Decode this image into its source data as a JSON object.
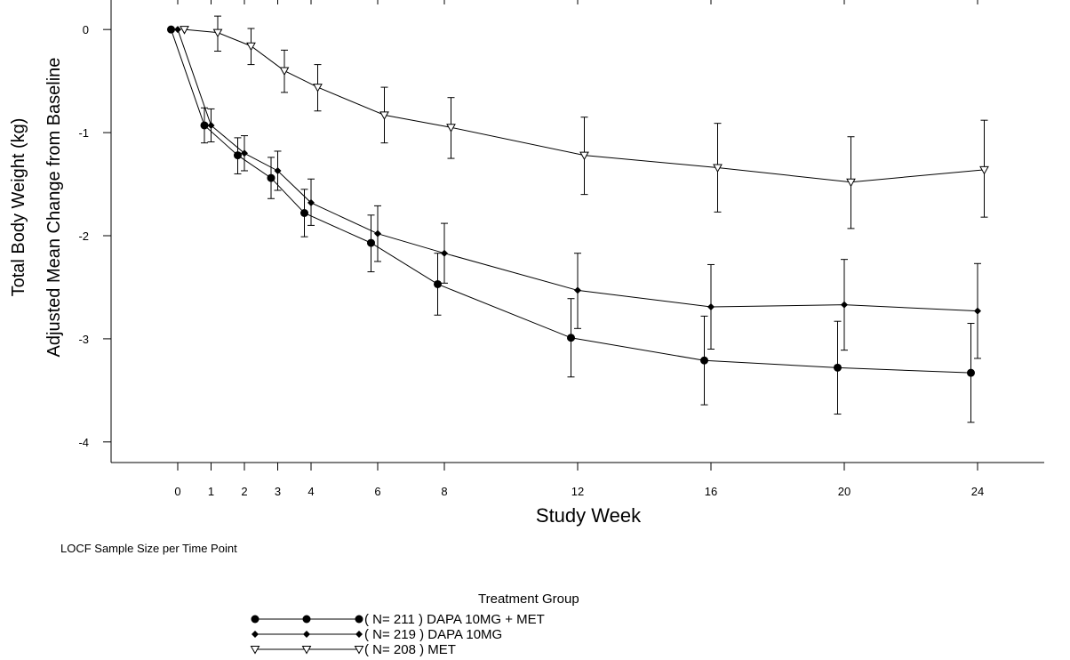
{
  "chart_data": {
    "type": "line",
    "xlabel": "Study Week",
    "ylabel": [
      "Total Body Weight (kg)",
      "Adjusted Mean Change from Baseline"
    ],
    "xticks": [
      0,
      1,
      2,
      3,
      4,
      6,
      8,
      12,
      16,
      20,
      24
    ],
    "yticks": [
      0,
      -1,
      -2,
      -3,
      -4
    ],
    "xlim": [
      -2,
      26
    ],
    "ylim": [
      -4.2,
      0.2
    ],
    "grid": false,
    "legend_placement": "bottom-center",
    "legend_title": "Treatment Group",
    "footnote": "LOCF Sample Size per Time Point",
    "series": [
      {
        "name": "DAPA 10MG + MET",
        "legend_label": "( N= 211 ) DAPA 10MG + MET",
        "marker": "filled-circle",
        "x": [
          -0.2,
          0.8,
          1.8,
          2.8,
          3.8,
          5.8,
          7.8,
          11.8,
          15.8,
          19.8,
          23.8
        ],
        "y": [
          0,
          -0.93,
          -1.22,
          -1.44,
          -1.78,
          -2.07,
          -2.47,
          -2.99,
          -3.21,
          -3.28,
          -3.33
        ],
        "lower": [
          0,
          -1.1,
          -1.4,
          -1.64,
          -2.01,
          -2.35,
          -2.77,
          -3.37,
          -3.64,
          -3.73,
          -3.81
        ],
        "upper": [
          0,
          -0.76,
          -1.05,
          -1.24,
          -1.55,
          -1.8,
          -2.17,
          -2.61,
          -2.78,
          -2.83,
          -2.85
        ]
      },
      {
        "name": "DAPA 10MG",
        "legend_label": "( N= 219 ) DAPA 10MG",
        "marker": "filled-diamond",
        "x": [
          0,
          1,
          2,
          3,
          4,
          6,
          8,
          12,
          16,
          20,
          24
        ],
        "y": [
          0,
          -0.93,
          -1.2,
          -1.37,
          -1.68,
          -1.98,
          -2.17,
          -2.53,
          -2.69,
          -2.67,
          -2.73
        ],
        "lower": [
          0,
          -1.09,
          -1.37,
          -1.56,
          -1.9,
          -2.25,
          -2.46,
          -2.9,
          -3.1,
          -3.11,
          -3.19
        ],
        "upper": [
          0,
          -0.77,
          -1.03,
          -1.18,
          -1.45,
          -1.71,
          -1.88,
          -2.17,
          -2.28,
          -2.23,
          -2.27
        ]
      },
      {
        "name": "MET",
        "legend_label": "( N= 208 ) MET",
        "marker": "open-triangle-down",
        "x": [
          0.2,
          1.2,
          2.2,
          3.2,
          4.2,
          6.2,
          8.2,
          12.2,
          16.2,
          20.2,
          24.2
        ],
        "y": [
          0,
          -0.03,
          -0.16,
          -0.4,
          -0.56,
          -0.83,
          -0.95,
          -1.22,
          -1.34,
          -1.48,
          -1.36
        ],
        "lower": [
          0,
          -0.21,
          -0.34,
          -0.61,
          -0.79,
          -1.1,
          -1.25,
          -1.6,
          -1.77,
          -1.93,
          -1.82
        ],
        "upper": [
          0,
          0.13,
          0.01,
          -0.2,
          -0.34,
          -0.56,
          -0.66,
          -0.85,
          -0.91,
          -1.04,
          -0.88
        ]
      }
    ]
  }
}
